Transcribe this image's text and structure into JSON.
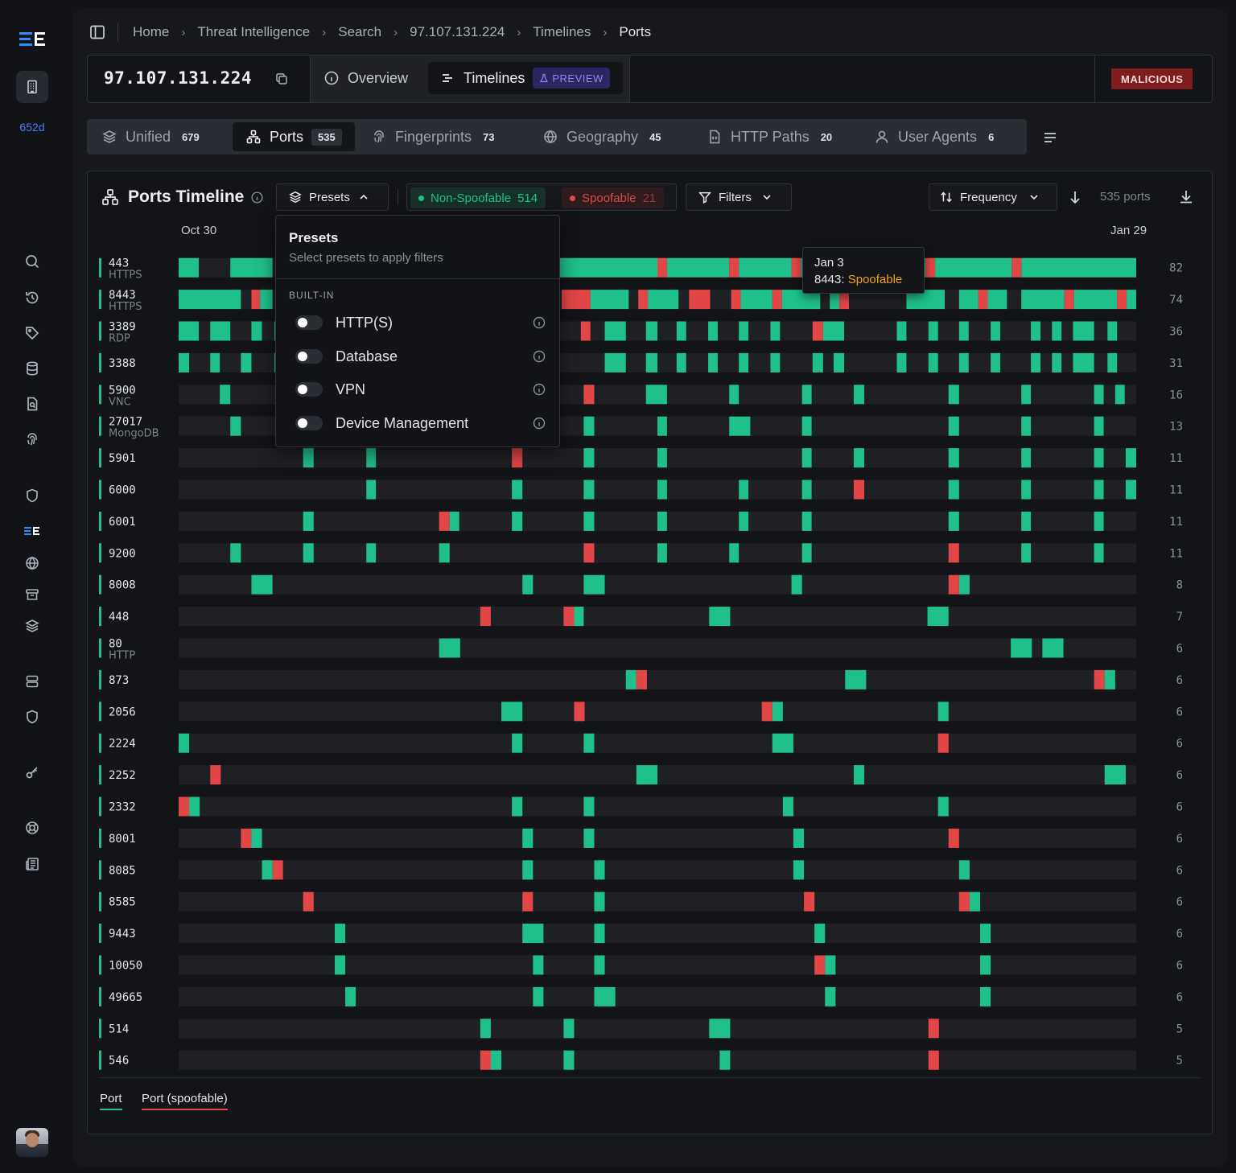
{
  "rail": {
    "workspace_id": "652d"
  },
  "breadcrumb": [
    "Home",
    "Threat Intelligence",
    "Search",
    "97.107.131.224",
    "Timelines",
    "Ports"
  ],
  "header": {
    "ip": "97.107.131.224",
    "tabs": {
      "overview": "Overview",
      "timelines": "Timelines",
      "preview": "PREVIEW"
    },
    "verdict": "MALICIOUS"
  },
  "pivot_tabs": [
    {
      "label": "Unified",
      "count": "679",
      "icon": "layers-icon"
    },
    {
      "label": "Ports",
      "count": "535",
      "icon": "network-icon",
      "active": true
    },
    {
      "label": "Fingerprints",
      "count": "73",
      "icon": "fingerprint-icon"
    },
    {
      "label": "Geography",
      "count": "45",
      "icon": "globe-icon"
    },
    {
      "label": "HTTP Paths",
      "count": "20",
      "icon": "file-code-icon"
    },
    {
      "label": "User Agents",
      "count": "6",
      "icon": "user-icon"
    }
  ],
  "panel": {
    "title": "Ports Timeline",
    "presets_label": "Presets",
    "legend": {
      "non_spoofable_label": "Non-Spoofable",
      "non_spoofable_count": "514",
      "spoofable_label": "Spoofable",
      "spoofable_count": "21"
    },
    "filters_label": "Filters",
    "sort_label": "Frequency",
    "ports_count": "535 ports",
    "date_start": "Oct 30",
    "date_end": "Jan 29",
    "footer_legend": {
      "port": "Port",
      "spoofable": "Port (spoofable)"
    }
  },
  "presets_dropdown": {
    "title": "Presets",
    "subtitle": "Select presets to apply filters",
    "group": "BUILT-IN",
    "items": [
      "HTTP(S)",
      "Database",
      "VPN",
      "Device Management"
    ]
  },
  "tooltip": {
    "date": "Jan 3",
    "port": "8443:",
    "value": "Spoofable"
  },
  "colors": {
    "non_spoofable": "#1fc08a",
    "spoofable": "#e24646",
    "track": "#1e2024"
  },
  "chart_data": {
    "type": "timeline",
    "x_range": [
      "Oct 30",
      "Jan 29"
    ],
    "rows": [
      {
        "port": "443",
        "service": "HTTPS",
        "count": "82"
      },
      {
        "port": "8443",
        "service": "HTTPS",
        "count": "74"
      },
      {
        "port": "3389",
        "service": "RDP",
        "count": "36"
      },
      {
        "port": "3388",
        "service": "",
        "count": "31"
      },
      {
        "port": "5900",
        "service": "VNC",
        "count": "16"
      },
      {
        "port": "27017",
        "service": "MongoDB",
        "count": "13"
      },
      {
        "port": "5901",
        "service": "",
        "count": "11"
      },
      {
        "port": "6000",
        "service": "",
        "count": "11"
      },
      {
        "port": "6001",
        "service": "",
        "count": "11"
      },
      {
        "port": "9200",
        "service": "",
        "count": "11"
      },
      {
        "port": "8008",
        "service": "",
        "count": "8"
      },
      {
        "port": "448",
        "service": "",
        "count": "7"
      },
      {
        "port": "80",
        "service": "HTTP",
        "count": "6"
      },
      {
        "port": "873",
        "service": "",
        "count": "6"
      },
      {
        "port": "2056",
        "service": "",
        "count": "6"
      },
      {
        "port": "2224",
        "service": "",
        "count": "6"
      },
      {
        "port": "2252",
        "service": "",
        "count": "6"
      },
      {
        "port": "2332",
        "service": "",
        "count": "6"
      },
      {
        "port": "8001",
        "service": "",
        "count": "6"
      },
      {
        "port": "8085",
        "service": "",
        "count": "6"
      },
      {
        "port": "8585",
        "service": "",
        "count": "6"
      },
      {
        "port": "9443",
        "service": "",
        "count": "6"
      },
      {
        "port": "10050",
        "service": "",
        "count": "6"
      },
      {
        "port": "49665",
        "service": "",
        "count": "6"
      },
      {
        "port": "514",
        "service": "",
        "count": "5"
      },
      {
        "port": "546",
        "service": "",
        "count": "5"
      }
    ],
    "segments": [
      [
        [
          0,
          0.021,
          "g"
        ],
        [
          0.054,
          0.098,
          "g"
        ],
        [
          0.357,
          0.5,
          "g"
        ],
        [
          0.5,
          0.51,
          "r"
        ],
        [
          0.51,
          0.575,
          "g"
        ],
        [
          0.575,
          0.585,
          "r"
        ],
        [
          0.585,
          0.64,
          "g"
        ],
        [
          0.64,
          0.65,
          "r"
        ],
        [
          0.65,
          0.66,
          "g"
        ],
        [
          0.73,
          0.78,
          "g"
        ],
        [
          0.78,
          0.79,
          "r"
        ],
        [
          0.79,
          0.87,
          "g"
        ],
        [
          0.87,
          0.88,
          "r"
        ],
        [
          0.88,
          1,
          "g"
        ]
      ],
      [
        [
          0,
          0.065,
          "g"
        ],
        [
          0.076,
          0.085,
          "r"
        ],
        [
          0.085,
          0.098,
          "g"
        ],
        [
          0.4,
          0.43,
          "r"
        ],
        [
          0.43,
          0.47,
          "g"
        ],
        [
          0.48,
          0.49,
          "r"
        ],
        [
          0.49,
          0.522,
          "g"
        ],
        [
          0.533,
          0.555,
          "r"
        ],
        [
          0.577,
          0.587,
          "r"
        ],
        [
          0.587,
          0.62,
          "g"
        ],
        [
          0.62,
          0.63,
          "r"
        ],
        [
          0.63,
          0.67,
          "g"
        ],
        [
          0.68,
          0.69,
          "g"
        ],
        [
          0.69,
          0.7,
          "r"
        ],
        [
          0.76,
          0.8,
          "g"
        ],
        [
          0.815,
          0.835,
          "g"
        ],
        [
          0.835,
          0.845,
          "r"
        ],
        [
          0.845,
          0.865,
          "g"
        ],
        [
          0.88,
          0.925,
          "g"
        ],
        [
          0.925,
          0.935,
          "r"
        ],
        [
          0.935,
          0.98,
          "g"
        ],
        [
          0.98,
          0.99,
          "r"
        ],
        [
          0.99,
          1,
          "g"
        ]
      ],
      [
        [
          0,
          0.021,
          "g"
        ],
        [
          0.033,
          0.054,
          "g"
        ],
        [
          0.076,
          0.087,
          "g"
        ],
        [
          0.1,
          0.11,
          "g"
        ],
        [
          0.42,
          0.43,
          "r"
        ],
        [
          0.445,
          0.467,
          "g"
        ],
        [
          0.488,
          0.5,
          "g"
        ],
        [
          0.52,
          0.53,
          "g"
        ],
        [
          0.553,
          0.563,
          "g"
        ],
        [
          0.585,
          0.595,
          "g"
        ],
        [
          0.618,
          0.628,
          "g"
        ],
        [
          0.662,
          0.673,
          "r"
        ],
        [
          0.673,
          0.695,
          "g"
        ],
        [
          0.75,
          0.76,
          "g"
        ],
        [
          0.783,
          0.793,
          "g"
        ],
        [
          0.815,
          0.825,
          "g"
        ],
        [
          0.848,
          0.858,
          "g"
        ],
        [
          0.89,
          0.9,
          "g"
        ],
        [
          0.912,
          0.922,
          "g"
        ],
        [
          0.934,
          0.956,
          "g"
        ],
        [
          0.97,
          0.98,
          "g"
        ]
      ],
      [
        [
          0,
          0.011,
          "g"
        ],
        [
          0.033,
          0.043,
          "g"
        ],
        [
          0.065,
          0.076,
          "g"
        ],
        [
          0.1,
          0.11,
          "g"
        ],
        [
          0.445,
          0.467,
          "g"
        ],
        [
          0.488,
          0.5,
          "g"
        ],
        [
          0.52,
          0.53,
          "g"
        ],
        [
          0.553,
          0.563,
          "g"
        ],
        [
          0.585,
          0.595,
          "g"
        ],
        [
          0.618,
          0.628,
          "g"
        ],
        [
          0.662,
          0.673,
          "g"
        ],
        [
          0.684,
          0.695,
          "g"
        ],
        [
          0.75,
          0.76,
          "g"
        ],
        [
          0.783,
          0.793,
          "g"
        ],
        [
          0.815,
          0.825,
          "g"
        ],
        [
          0.848,
          0.858,
          "g"
        ],
        [
          0.89,
          0.9,
          "g"
        ],
        [
          0.912,
          0.922,
          "g"
        ],
        [
          0.934,
          0.956,
          "g"
        ],
        [
          0.97,
          0.98,
          "g"
        ]
      ],
      [
        [
          0.043,
          0.054,
          "g"
        ],
        [
          0.423,
          0.434,
          "r"
        ],
        [
          0.488,
          0.51,
          "g"
        ],
        [
          0.575,
          0.585,
          "g"
        ],
        [
          0.651,
          0.661,
          "g"
        ],
        [
          0.705,
          0.716,
          "g"
        ],
        [
          0.804,
          0.815,
          "g"
        ],
        [
          0.88,
          0.89,
          "g"
        ],
        [
          0.956,
          0.966,
          "g"
        ],
        [
          0.978,
          0.988,
          "g"
        ]
      ],
      [
        [
          0.054,
          0.065,
          "g"
        ],
        [
          0.423,
          0.434,
          "g"
        ],
        [
          0.5,
          0.51,
          "g"
        ],
        [
          0.575,
          0.597,
          "g"
        ],
        [
          0.651,
          0.661,
          "g"
        ],
        [
          0.804,
          0.815,
          "g"
        ],
        [
          0.88,
          0.89,
          "g"
        ],
        [
          0.956,
          0.966,
          "g"
        ]
      ],
      [
        [
          0.13,
          0.141,
          "g"
        ],
        [
          0.196,
          0.206,
          "g"
        ],
        [
          0.348,
          0.359,
          "r"
        ],
        [
          0.423,
          0.434,
          "g"
        ],
        [
          0.5,
          0.51,
          "g"
        ],
        [
          0.651,
          0.661,
          "g"
        ],
        [
          0.705,
          0.716,
          "g"
        ],
        [
          0.804,
          0.815,
          "g"
        ],
        [
          0.88,
          0.89,
          "g"
        ],
        [
          0.956,
          0.966,
          "g"
        ],
        [
          0.989,
          1,
          "g"
        ]
      ],
      [
        [
          0.196,
          0.206,
          "g"
        ],
        [
          0.348,
          0.359,
          "g"
        ],
        [
          0.423,
          0.434,
          "g"
        ],
        [
          0.5,
          0.51,
          "g"
        ],
        [
          0.585,
          0.595,
          "g"
        ],
        [
          0.651,
          0.661,
          "g"
        ],
        [
          0.705,
          0.716,
          "r"
        ],
        [
          0.804,
          0.815,
          "g"
        ],
        [
          0.88,
          0.89,
          "g"
        ],
        [
          0.956,
          0.966,
          "g"
        ],
        [
          0.989,
          1,
          "g"
        ]
      ],
      [
        [
          0.13,
          0.141,
          "g"
        ],
        [
          0.272,
          0.283,
          "r"
        ],
        [
          0.283,
          0.293,
          "g"
        ],
        [
          0.348,
          0.359,
          "g"
        ],
        [
          0.423,
          0.434,
          "g"
        ],
        [
          0.5,
          0.51,
          "g"
        ],
        [
          0.585,
          0.595,
          "g"
        ],
        [
          0.651,
          0.661,
          "g"
        ],
        [
          0.804,
          0.815,
          "g"
        ],
        [
          0.88,
          0.89,
          "g"
        ],
        [
          0.956,
          0.966,
          "g"
        ]
      ],
      [
        [
          0.054,
          0.065,
          "g"
        ],
        [
          0.13,
          0.141,
          "g"
        ],
        [
          0.196,
          0.206,
          "g"
        ],
        [
          0.272,
          0.283,
          "g"
        ],
        [
          0.423,
          0.434,
          "r"
        ],
        [
          0.5,
          0.51,
          "g"
        ],
        [
          0.575,
          0.585,
          "g"
        ],
        [
          0.651,
          0.661,
          "g"
        ],
        [
          0.804,
          0.815,
          "r"
        ],
        [
          0.88,
          0.89,
          "g"
        ],
        [
          0.956,
          0.966,
          "g"
        ]
      ],
      [
        [
          0.076,
          0.098,
          "g"
        ],
        [
          0.359,
          0.37,
          "g"
        ],
        [
          0.423,
          0.445,
          "g"
        ],
        [
          0.64,
          0.651,
          "g"
        ],
        [
          0.804,
          0.815,
          "r"
        ],
        [
          0.815,
          0.826,
          "g"
        ]
      ],
      [
        [
          0.315,
          0.326,
          "r"
        ],
        [
          0.402,
          0.413,
          "r"
        ],
        [
          0.413,
          0.423,
          "g"
        ],
        [
          0.554,
          0.576,
          "g"
        ],
        [
          0.782,
          0.804,
          "g"
        ]
      ],
      [
        [
          0.272,
          0.294,
          "g"
        ],
        [
          0.869,
          0.891,
          "g"
        ],
        [
          0.902,
          0.924,
          "g"
        ]
      ],
      [
        [
          0.467,
          0.478,
          "g"
        ],
        [
          0.478,
          0.489,
          "r"
        ],
        [
          0.696,
          0.718,
          "g"
        ],
        [
          0.956,
          0.967,
          "r"
        ],
        [
          0.967,
          0.978,
          "g"
        ]
      ],
      [
        [
          0.337,
          0.359,
          "g"
        ],
        [
          0.413,
          0.424,
          "r"
        ],
        [
          0.609,
          0.62,
          "r"
        ],
        [
          0.62,
          0.631,
          "g"
        ],
        [
          0.793,
          0.804,
          "g"
        ]
      ],
      [
        [
          0,
          0.011,
          "g"
        ],
        [
          0.348,
          0.359,
          "g"
        ],
        [
          0.423,
          0.434,
          "g"
        ],
        [
          0.62,
          0.642,
          "g"
        ],
        [
          0.793,
          0.804,
          "r"
        ]
      ],
      [
        [
          0.033,
          0.044,
          "r"
        ],
        [
          0.478,
          0.5,
          "g"
        ],
        [
          0.705,
          0.716,
          "g"
        ],
        [
          0.967,
          0.989,
          "g"
        ]
      ],
      [
        [
          0,
          0.011,
          "r"
        ],
        [
          0.011,
          0.022,
          "g"
        ],
        [
          0.348,
          0.359,
          "g"
        ],
        [
          0.423,
          0.434,
          "g"
        ],
        [
          0.631,
          0.642,
          "g"
        ],
        [
          0.793,
          0.804,
          "g"
        ]
      ],
      [
        [
          0.065,
          0.076,
          "r"
        ],
        [
          0.076,
          0.087,
          "g"
        ],
        [
          0.359,
          0.37,
          "g"
        ],
        [
          0.423,
          0.434,
          "g"
        ],
        [
          0.642,
          0.653,
          "g"
        ],
        [
          0.804,
          0.815,
          "r"
        ]
      ],
      [
        [
          0.087,
          0.098,
          "g"
        ],
        [
          0.098,
          0.109,
          "r"
        ],
        [
          0.359,
          0.37,
          "g"
        ],
        [
          0.434,
          0.445,
          "g"
        ],
        [
          0.642,
          0.653,
          "g"
        ],
        [
          0.815,
          0.826,
          "g"
        ]
      ],
      [
        [
          0.13,
          0.141,
          "r"
        ],
        [
          0.359,
          0.37,
          "r"
        ],
        [
          0.434,
          0.445,
          "g"
        ],
        [
          0.653,
          0.664,
          "r"
        ],
        [
          0.815,
          0.826,
          "r"
        ],
        [
          0.826,
          0.837,
          "g"
        ]
      ],
      [
        [
          0.163,
          0.174,
          "g"
        ],
        [
          0.359,
          0.381,
          "g"
        ],
        [
          0.434,
          0.445,
          "g"
        ],
        [
          0.664,
          0.675,
          "g"
        ],
        [
          0.837,
          0.848,
          "g"
        ]
      ],
      [
        [
          0.163,
          0.174,
          "g"
        ],
        [
          0.37,
          0.381,
          "g"
        ],
        [
          0.434,
          0.445,
          "g"
        ],
        [
          0.664,
          0.675,
          "r"
        ],
        [
          0.675,
          0.686,
          "g"
        ],
        [
          0.837,
          0.848,
          "g"
        ]
      ],
      [
        [
          0.174,
          0.185,
          "g"
        ],
        [
          0.37,
          0.381,
          "g"
        ],
        [
          0.434,
          0.456,
          "g"
        ],
        [
          0.675,
          0.686,
          "g"
        ],
        [
          0.837,
          0.848,
          "g"
        ]
      ],
      [
        [
          0.315,
          0.326,
          "g"
        ],
        [
          0.402,
          0.413,
          "g"
        ],
        [
          0.554,
          0.576,
          "g"
        ],
        [
          0.783,
          0.794,
          "r"
        ]
      ],
      [
        [
          0.315,
          0.326,
          "r"
        ],
        [
          0.326,
          0.337,
          "g"
        ],
        [
          0.402,
          0.413,
          "g"
        ],
        [
          0.565,
          0.576,
          "g"
        ],
        [
          0.783,
          0.794,
          "r"
        ]
      ]
    ]
  }
}
